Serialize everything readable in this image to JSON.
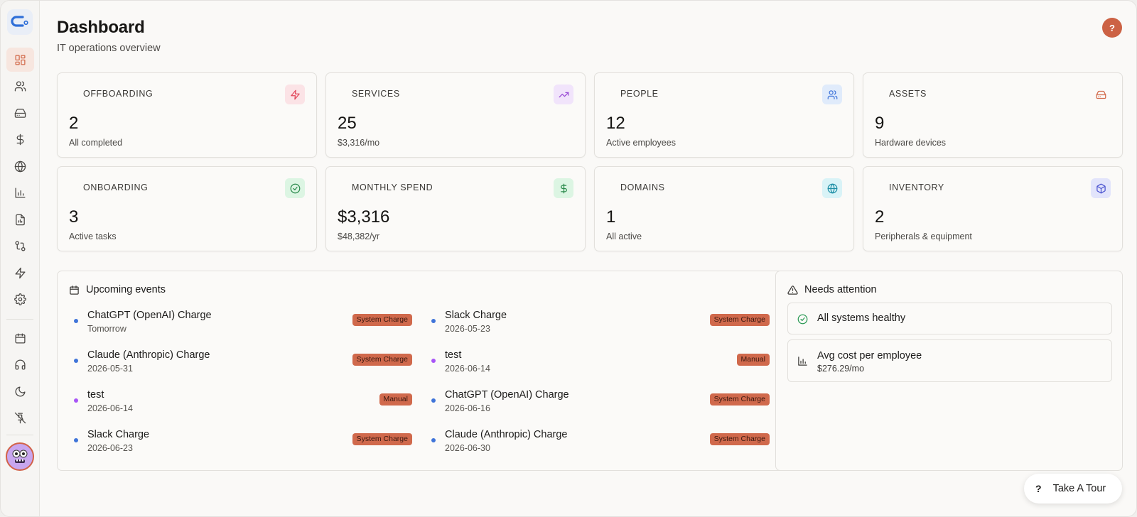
{
  "header": {
    "title": "Dashboard",
    "subtitle": "IT operations overview",
    "help_label": "?"
  },
  "sidebar": {
    "items": [
      {
        "icon": "dashboard-icon",
        "active": true
      },
      {
        "icon": "users-icon"
      },
      {
        "icon": "hard-drive-icon"
      },
      {
        "icon": "dollar-icon"
      },
      {
        "icon": "globe-icon"
      },
      {
        "icon": "bar-chart-icon"
      },
      {
        "icon": "file-report-icon"
      },
      {
        "icon": "git-compare-icon"
      },
      {
        "icon": "lightning-icon"
      },
      {
        "icon": "settings-icon"
      }
    ],
    "bottom_items": [
      {
        "icon": "calendar-icon"
      },
      {
        "icon": "headphones-icon"
      },
      {
        "icon": "moon-icon"
      },
      {
        "icon": "unpin-icon"
      }
    ]
  },
  "stats": [
    {
      "label": "OFFBOARDING",
      "value": "2",
      "sub": "All completed",
      "icon": "lightning-icon",
      "bg": "#fbe3e6",
      "fg": "#e2485a"
    },
    {
      "label": "SERVICES",
      "value": "25",
      "sub": "$3,316/mo",
      "icon": "trending-up-icon",
      "bg": "#f1e4fb",
      "fg": "#9b4fd6"
    },
    {
      "label": "PEOPLE",
      "value": "12",
      "sub": "Active employees",
      "icon": "users-icon",
      "bg": "#e0ebfb",
      "fg": "#3f74d9"
    },
    {
      "label": "ASSETS",
      "value": "9",
      "sub": "Hardware devices",
      "icon": "hard-drive-icon",
      "bg": "transparent",
      "fg": "#d2694a"
    },
    {
      "label": "ONBOARDING",
      "value": "3",
      "sub": "Active tasks",
      "icon": "check-circle-icon",
      "bg": "#dcf5e3",
      "fg": "#2b8a4c"
    },
    {
      "label": "MONTHLY SPEND",
      "value": "$3,316",
      "sub": "$48,382/yr",
      "icon": "dollar-icon",
      "bg": "#dcf5e3",
      "fg": "#2b8a4c"
    },
    {
      "label": "DOMAINS",
      "value": "1",
      "sub": "All active",
      "icon": "globe-icon",
      "bg": "#d9f3f7",
      "fg": "#1f8fa6"
    },
    {
      "label": "INVENTORY",
      "value": "2",
      "sub": "Peripherals & equipment",
      "icon": "box-icon",
      "bg": "#e2e4fb",
      "fg": "#4d55d0"
    }
  ],
  "events": {
    "title": "Upcoming events",
    "items": [
      {
        "name": "ChatGPT (OpenAI) Charge",
        "date": "Tomorrow",
        "badge": "System Charge",
        "dot": "#3f74d9"
      },
      {
        "name": "Slack Charge",
        "date": "2026-05-23",
        "badge": "System Charge",
        "dot": "#3f74d9"
      },
      {
        "name": "Claude (Anthropic) Charge",
        "date": "2026-05-31",
        "badge": "System Charge",
        "dot": "#3f74d9"
      },
      {
        "name": "test",
        "date": "2026-06-14",
        "badge": "Manual",
        "dot": "#a855f7"
      },
      {
        "name": "test",
        "date": "2026-06-14",
        "badge": "Manual",
        "dot": "#a855f7"
      },
      {
        "name": "ChatGPT (OpenAI) Charge",
        "date": "2026-06-16",
        "badge": "System Charge",
        "dot": "#3f74d9"
      },
      {
        "name": "Slack Charge",
        "date": "2026-06-23",
        "badge": "System Charge",
        "dot": "#3f74d9"
      },
      {
        "name": "Claude (Anthropic) Charge",
        "date": "2026-06-30",
        "badge": "System Charge",
        "dot": "#3f74d9"
      }
    ]
  },
  "attention": {
    "title": "Needs attention",
    "healthy": "All systems healthy",
    "cost_title": "Avg cost per employee",
    "cost_value": "$276.29/mo"
  },
  "tour": {
    "icon_label": "?",
    "label": "Take A Tour"
  }
}
